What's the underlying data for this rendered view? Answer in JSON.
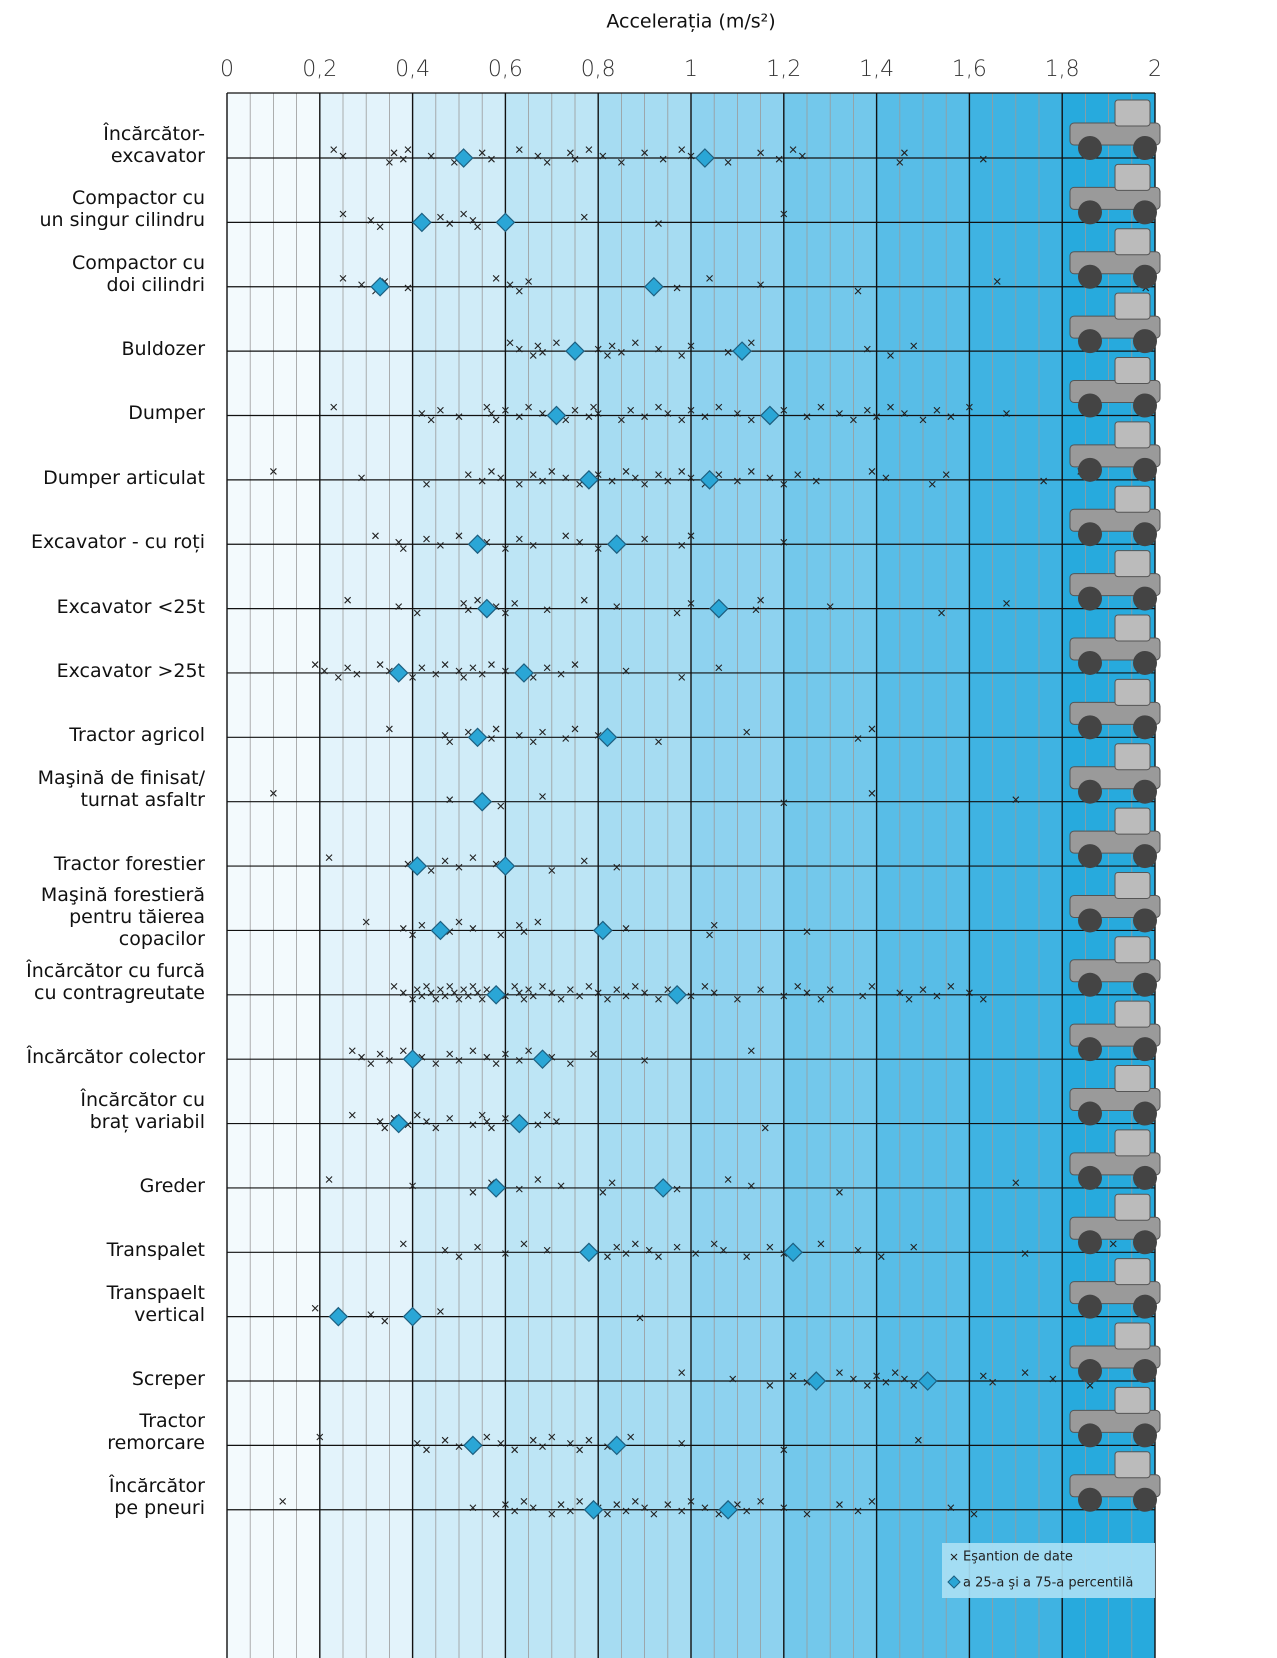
{
  "chart_data": {
    "type": "strip",
    "x_label": "Accelerația (m/s²)",
    "xlim": [
      0,
      2
    ],
    "xticks": [
      0,
      {
        "value": 0.2,
        "label": "0,2"
      },
      {
        "value": 0.4,
        "label": "0,4"
      },
      {
        "value": 0.6,
        "label": "0,6"
      },
      {
        "value": 0.8,
        "label": "0,8"
      },
      1,
      {
        "value": 1.2,
        "label": "1,2"
      },
      {
        "value": 1.4,
        "label": "1,4"
      },
      {
        "value": 1.6,
        "label": "1,6"
      },
      {
        "value": 1.8,
        "label": "1,8"
      },
      2
    ],
    "grid": true,
    "legend": "bottom-right",
    "categories": [
      "Încărcător-\nexcavator",
      "Compactor  cu\nun singur cilindru",
      "Compactor cu\ndoi cilindri",
      "Buldozer",
      "Dumper",
      "Dumper articulat",
      "Excavator - cu roți",
      "Excavator <25t",
      "Excavator >25t",
      "Tractor agricol",
      "Maşină de finisat/\nturnat asfaltr",
      "Tractor forestier",
      "Maşină forestieră\npentru tăierea\ncopacilor",
      "Încărcător cu furcă\ncu contragreutate",
      "Încărcător colector",
      "Încărcător cu\nbraț variabil",
      "Greder",
      "Transpalet",
      "Transpaelt\nvertical",
      "Screper",
      "Tractor\nremorcare",
      "Încărcător\npe pneuri"
    ],
    "series": [
      {
        "name": "Eşantion de date",
        "color": "#222222",
        "marker": "x",
        "values": [
          [
            0.23,
            0.25,
            0.35,
            0.36,
            0.38,
            0.39,
            0.44,
            0.49,
            0.55,
            0.57,
            0.63,
            0.67,
            0.69,
            0.74,
            0.75,
            0.78,
            0.81,
            0.85,
            0.9,
            0.94,
            0.98,
            1.0,
            1.08,
            1.15,
            1.19,
            1.22,
            1.24,
            1.45,
            1.46,
            1.63
          ],
          [
            0.25,
            0.31,
            0.33,
            0.46,
            0.48,
            0.51,
            0.53,
            0.54,
            0.77,
            0.93,
            1.2
          ],
          [
            0.25,
            0.29,
            0.32,
            0.34,
            0.39,
            0.58,
            0.61,
            0.63,
            0.65,
            0.97,
            1.04,
            1.15,
            1.36,
            1.66,
            1.98
          ],
          [
            0.61,
            0.63,
            0.66,
            0.67,
            0.68,
            0.71,
            0.8,
            0.82,
            0.83,
            0.85,
            0.88,
            0.93,
            0.98,
            1.0,
            1.08,
            1.13,
            1.38,
            1.43,
            1.48
          ],
          [
            0.23,
            0.42,
            0.44,
            0.46,
            0.5,
            0.56,
            0.57,
            0.58,
            0.6,
            0.63,
            0.65,
            0.68,
            0.73,
            0.75,
            0.78,
            0.79,
            0.8,
            0.85,
            0.87,
            0.9,
            0.93,
            0.95,
            0.98,
            1.0,
            1.03,
            1.06,
            1.1,
            1.13,
            1.2,
            1.25,
            1.28,
            1.32,
            1.35,
            1.38,
            1.4,
            1.43,
            1.46,
            1.5,
            1.53,
            1.56,
            1.6,
            1.68
          ],
          [
            0.1,
            0.29,
            0.43,
            0.52,
            0.55,
            0.57,
            0.59,
            0.63,
            0.66,
            0.68,
            0.7,
            0.73,
            0.76,
            0.8,
            0.83,
            0.86,
            0.88,
            0.9,
            0.93,
            0.95,
            0.98,
            1.0,
            1.03,
            1.06,
            1.1,
            1.13,
            1.17,
            1.2,
            1.23,
            1.27,
            1.39,
            1.42,
            1.52,
            1.55,
            1.76,
            1.84
          ],
          [
            0.32,
            0.37,
            0.38,
            0.43,
            0.46,
            0.5,
            0.56,
            0.6,
            0.63,
            0.66,
            0.73,
            0.76,
            0.8,
            0.9,
            0.98,
            1.0,
            1.2
          ],
          [
            0.26,
            0.37,
            0.41,
            0.51,
            0.52,
            0.54,
            0.58,
            0.6,
            0.62,
            0.69,
            0.77,
            0.84,
            0.97,
            1.0,
            1.14,
            1.15,
            1.3,
            1.54,
            1.68
          ],
          [
            0.19,
            0.21,
            0.24,
            0.26,
            0.28,
            0.33,
            0.35,
            0.4,
            0.42,
            0.45,
            0.47,
            0.5,
            0.51,
            0.53,
            0.55,
            0.57,
            0.6,
            0.66,
            0.69,
            0.72,
            0.75,
            0.86,
            0.98,
            1.06
          ],
          [
            0.35,
            0.47,
            0.48,
            0.52,
            0.57,
            0.58,
            0.63,
            0.66,
            0.68,
            0.73,
            0.75,
            0.8,
            0.93,
            1.12,
            1.36,
            1.39
          ],
          [
            0.1,
            0.48,
            0.59,
            0.68,
            1.2,
            1.39,
            1.7
          ],
          [
            0.22,
            0.39,
            0.44,
            0.47,
            0.5,
            0.53,
            0.58,
            0.7,
            0.77,
            0.84
          ],
          [
            0.3,
            0.38,
            0.4,
            0.42,
            0.48,
            0.5,
            0.53,
            0.59,
            0.63,
            0.64,
            0.67,
            0.86,
            1.04,
            1.05,
            1.25,
            1.85
          ],
          [
            0.36,
            0.38,
            0.4,
            0.41,
            0.42,
            0.43,
            0.44,
            0.45,
            0.46,
            0.47,
            0.48,
            0.49,
            0.5,
            0.51,
            0.52,
            0.53,
            0.54,
            0.55,
            0.56,
            0.6,
            0.62,
            0.63,
            0.64,
            0.65,
            0.66,
            0.68,
            0.7,
            0.72,
            0.74,
            0.76,
            0.78,
            0.8,
            0.82,
            0.84,
            0.86,
            0.88,
            0.9,
            0.93,
            0.95,
            1.0,
            1.03,
            1.05,
            1.1,
            1.15,
            1.2,
            1.23,
            1.25,
            1.28,
            1.3,
            1.37,
            1.39,
            1.45,
            1.47,
            1.5,
            1.53,
            1.56,
            1.6,
            1.63
          ],
          [
            0.27,
            0.29,
            0.31,
            0.33,
            0.35,
            0.38,
            0.42,
            0.45,
            0.48,
            0.5,
            0.53,
            0.56,
            0.58,
            0.6,
            0.63,
            0.65,
            0.7,
            0.74,
            0.79,
            0.9,
            1.13
          ],
          [
            0.27,
            0.33,
            0.34,
            0.36,
            0.39,
            0.41,
            0.43,
            0.45,
            0.48,
            0.53,
            0.55,
            0.56,
            0.57,
            0.6,
            0.67,
            0.69,
            0.71,
            1.16
          ],
          [
            0.22,
            0.4,
            0.53,
            0.57,
            0.63,
            0.67,
            0.72,
            0.81,
            0.83,
            0.97,
            1.08,
            1.13,
            1.32,
            1.7
          ],
          [
            0.38,
            0.47,
            0.5,
            0.54,
            0.6,
            0.64,
            0.69,
            0.82,
            0.84,
            0.86,
            0.88,
            0.91,
            0.93,
            0.97,
            1.01,
            1.05,
            1.07,
            1.12,
            1.17,
            1.2,
            1.28,
            1.36,
            1.41,
            1.48,
            1.72,
            1.91
          ],
          [
            0.19,
            0.31,
            0.34,
            0.46,
            0.89
          ],
          [
            0.98,
            1.09,
            1.17,
            1.22,
            1.25,
            1.32,
            1.35,
            1.38,
            1.4,
            1.42,
            1.44,
            1.46,
            1.48,
            1.63,
            1.65,
            1.72,
            1.78,
            1.86
          ],
          [
            0.2,
            0.41,
            0.43,
            0.47,
            0.5,
            0.56,
            0.59,
            0.62,
            0.66,
            0.68,
            0.7,
            0.74,
            0.76,
            0.78,
            0.82,
            0.87,
            0.98,
            1.2,
            1.49
          ],
          [
            0.12,
            0.53,
            0.58,
            0.6,
            0.62,
            0.64,
            0.66,
            0.7,
            0.72,
            0.74,
            0.76,
            0.8,
            0.82,
            0.84,
            0.86,
            0.88,
            0.9,
            0.92,
            0.95,
            0.98,
            1.0,
            1.03,
            1.06,
            1.1,
            1.12,
            1.15,
            1.2,
            1.25,
            1.32,
            1.36,
            1.39,
            1.56,
            1.61
          ]
        ]
      },
      {
        "name": "a 25-a şi a 75-a percentilă",
        "color": "#2aa6d6",
        "marker": "diamond",
        "values": [
          [
            0.51,
            1.03
          ],
          [
            0.42,
            0.6
          ],
          [
            0.33,
            0.92
          ],
          [
            0.75,
            1.11
          ],
          [
            0.71,
            1.17
          ],
          [
            0.78,
            1.04
          ],
          [
            0.54,
            0.84
          ],
          [
            0.56,
            1.06
          ],
          [
            0.37,
            0.64
          ],
          [
            0.54,
            0.82
          ],
          [
            0.55,
            0.55
          ],
          [
            0.41,
            0.6
          ],
          [
            0.46,
            0.81
          ],
          [
            0.58,
            0.97
          ],
          [
            0.4,
            0.68
          ],
          [
            0.37,
            0.63
          ],
          [
            0.58,
            0.94
          ],
          [
            0.78,
            1.22
          ],
          [
            0.24,
            0.4
          ],
          [
            1.27,
            1.51
          ],
          [
            0.53,
            0.84
          ],
          [
            0.79,
            1.08
          ]
        ]
      }
    ]
  }
}
